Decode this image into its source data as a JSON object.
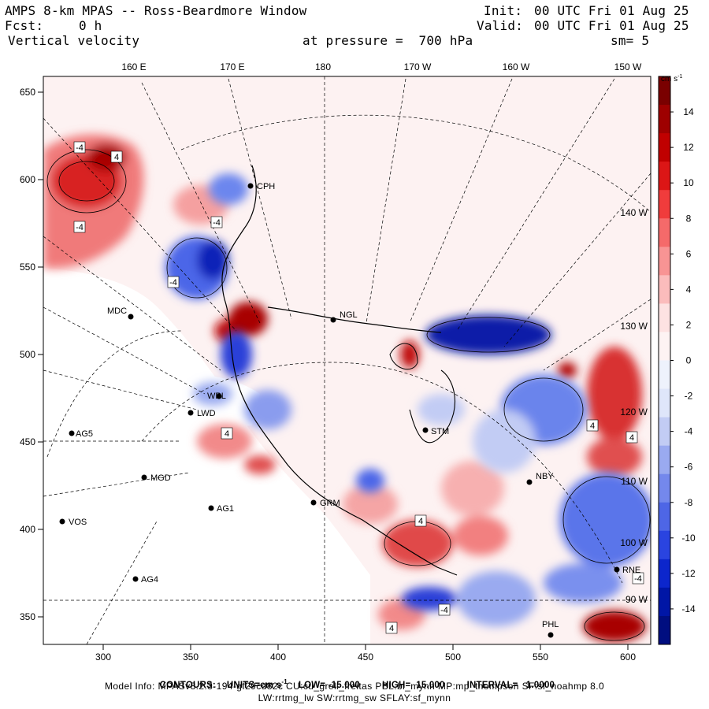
{
  "header": {
    "title": "AMPS 8-km MPAS -- Ross-Beardmore Window",
    "fcst_label": "Fcst:",
    "fcst_value": "0 h",
    "field": "Vertical velocity",
    "init_label": "Init:",
    "init_time": "00 UTC Fri 01 Aug 25",
    "valid_label": "Valid:",
    "valid_time": "00 UTC Fri 01 Aug 25",
    "pressure_text": "at pressure =  700 hPa",
    "smoothing": "sm= 5"
  },
  "map": {
    "top_longitudes": [
      "160 E",
      "170 E",
      "180",
      "170 W",
      "160 W",
      "150 W"
    ],
    "left_ticks": [
      "650",
      "600",
      "550",
      "500",
      "450",
      "400",
      "350"
    ],
    "bottom_ticks": [
      "300",
      "350",
      "400",
      "450",
      "500",
      "550",
      "600"
    ],
    "side_longitudes": [
      "140 W",
      "130 W",
      "120 W",
      "110 W",
      "100 W",
      "90 W"
    ],
    "stations": [
      "CPH",
      "NGL",
      "MDC",
      "AG5",
      "MGD",
      "AG1",
      "VOS",
      "AG4",
      "LWD",
      "WPL",
      "GRM",
      "STM",
      "NBY",
      "PHL",
      "RNE"
    ],
    "contour_labels": [
      "-4",
      "4",
      "-4",
      "4",
      "-4",
      "4",
      "-4",
      "4",
      "-4",
      "4",
      "-4",
      "4"
    ]
  },
  "colorbar": {
    "units": "cm s",
    "units_exp": "-1",
    "ticks": [
      "14",
      "12",
      "10",
      "8",
      "6",
      "4",
      "2",
      "0",
      "-2",
      "-4",
      "-6",
      "-8",
      "-10",
      "-12",
      "-14"
    ],
    "colors": [
      "#7a0000",
      "#9e0000",
      "#c00000",
      "#dc1616",
      "#f03c3c",
      "#f56a6a",
      "#f89494",
      "#fbbcbc",
      "#fde2e2",
      "#fdf3f3",
      "#eef2fc",
      "#dfe6fa",
      "#c2ccf4",
      "#9aaaf0",
      "#7488ec",
      "#4e66e6",
      "#2a44e0",
      "#0c26cc",
      "#0016a6",
      "#000e80"
    ]
  },
  "footer": {
    "contours_label": "CONTOURS:",
    "units_label": "UNITS=cm s",
    "units_exp": "-1",
    "low": "LOW= -15.000",
    "high": "HIGH=  15.000",
    "interval": "INTERVAL=   1.0000",
    "model_info": "Model Info: MPASv8.2.3-194-gf29cd82c CU:cu_grell_freitas PBL:bl_mynn MP:mp_thompson SF:sf_noahmp 8.0",
    "physics": "LW:rrtmg_lw SW:rrtmg_sw SFLAY:sf_mynn"
  }
}
